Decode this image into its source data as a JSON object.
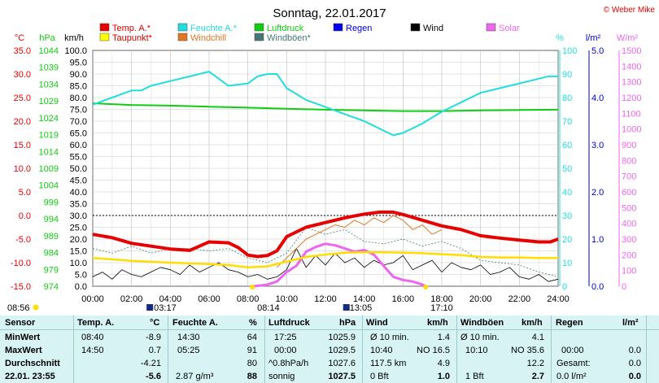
{
  "title": "Sonntag, 22.01.2017",
  "credit": "© Weber Mike",
  "legend": [
    {
      "label": "Temp. A.*",
      "color": "#e60000"
    },
    {
      "label": "Feuchte A.*",
      "color": "#22dddd"
    },
    {
      "label": "Luftdruck",
      "color": "#11cc11"
    },
    {
      "label": "Regen",
      "color": "#0000ee"
    },
    {
      "label": "Wind",
      "color": "#000000"
    },
    {
      "label": "Solar",
      "color": "#ee66ee"
    },
    {
      "label": "Taupunkt*",
      "color": "#ffff00"
    },
    {
      "label": "Windchill",
      "color": "#dd7722"
    },
    {
      "label": "Windböen*",
      "color": "#447777"
    }
  ],
  "axis_units": {
    "temp": "°C",
    "press": "hPa",
    "wind": "km/h",
    "hum": "%",
    "rain": "l/m²",
    "solar": "W/m²"
  },
  "sun": {
    "sunrise": "08:14",
    "sunset": "17:10",
    "moonset": "03:17",
    "moonrise": "13:05",
    "daylength": "08:56"
  },
  "chart_data": {
    "type": "line",
    "x_unit": "hours",
    "x_ticks": [
      "00:00",
      "02:00",
      "04:00",
      "06:00",
      "08:00",
      "10:00",
      "12:00",
      "14:00",
      "16:00",
      "18:00",
      "20:00",
      "22:00",
      "24:00"
    ],
    "axes": {
      "temp": {
        "range": [
          -15,
          35
        ],
        "ticks": [
          "35.0",
          "30.0",
          "25.0",
          "20.0",
          "15.0",
          "10.0",
          "5.0",
          "0.0",
          "-5.0",
          "-10.0",
          "-15.0"
        ]
      },
      "press": {
        "range": [
          974,
          1044
        ],
        "ticks": [
          "1044",
          "1039",
          "1034",
          "1029",
          "1024",
          "1019",
          "1014",
          "1009",
          "1004",
          "999",
          "994",
          "989",
          "984",
          "979",
          "974"
        ]
      },
      "wind": {
        "range": [
          0,
          100
        ],
        "ticks": [
          "100.0",
          "95.0",
          "90.0",
          "85.0",
          "80.0",
          "75.0",
          "70.0",
          "65.0",
          "60.0",
          "55.0",
          "50.0",
          "45.0",
          "40.0",
          "35.0",
          "30.0",
          "25.0",
          "20.0",
          "15.0",
          "10.0",
          "5.0",
          "0.0"
        ]
      },
      "hum": {
        "range": [
          0,
          100
        ],
        "ticks": [
          "100",
          "90",
          "80",
          "70",
          "60",
          "50",
          "40",
          "30",
          "20",
          "10",
          "0"
        ]
      },
      "rain": {
        "range": [
          0,
          5
        ],
        "ticks": [
          "5.0",
          "4.0",
          "3.0",
          "2.0",
          "1.0",
          "0.0"
        ]
      },
      "solar": {
        "range": [
          0,
          1500
        ],
        "ticks": [
          "1500",
          "1400",
          "1300",
          "1200",
          "1100",
          "1000",
          "900",
          "800",
          "700",
          "600",
          "500",
          "400",
          "300",
          "200",
          "100",
          "0"
        ]
      }
    },
    "series": [
      {
        "name": "Temp. A.*",
        "axis": "temp",
        "color": "#e60000",
        "x": [
          0,
          1,
          2,
          3,
          4,
          5,
          5.5,
          6,
          7,
          7.5,
          8,
          8.5,
          9,
          9.5,
          10,
          11,
          12,
          13,
          14,
          14.8,
          15.5,
          16,
          17,
          18,
          19,
          20,
          21,
          22,
          23,
          23.6,
          24
        ],
        "y": [
          -4.0,
          -4.7,
          -5.9,
          -6.5,
          -7.1,
          -7.4,
          -6.5,
          -5.6,
          -5.8,
          -6.8,
          -8.4,
          -8.7,
          -8.5,
          -7.5,
          -4.5,
          -2.5,
          -1.5,
          -0.5,
          0.3,
          0.7,
          0.7,
          0.2,
          -1.0,
          -2.2,
          -3.0,
          -4.3,
          -4.8,
          -5.2,
          -5.6,
          -5.6,
          -5.0
        ]
      },
      {
        "name": "Taupunkt*",
        "axis": "temp",
        "color": "#ffdd00",
        "x": [
          0,
          2,
          4,
          6,
          7,
          8,
          9,
          10,
          11,
          12,
          13,
          14,
          15,
          16,
          17,
          18,
          19,
          20,
          21,
          22,
          23,
          24
        ],
        "y": [
          -9.0,
          -9.6,
          -10.0,
          -10.3,
          -10.5,
          -11.0,
          -10.8,
          -9.8,
          -8.8,
          -8.3,
          -7.9,
          -7.8,
          -7.8,
          -7.9,
          -8.0,
          -8.2,
          -8.4,
          -8.8,
          -8.9,
          -8.9,
          -9.0,
          -9.0
        ]
      },
      {
        "name": "Feuchte A.*",
        "axis": "hum",
        "color": "#22dddd",
        "x": [
          0,
          1,
          2,
          2.5,
          3,
          4,
          5,
          6,
          6.5,
          7,
          8,
          8.5,
          9,
          9.5,
          10,
          11,
          12,
          13,
          14,
          14.5,
          15,
          15.5,
          16,
          17,
          18,
          19,
          20,
          21,
          22,
          23,
          23.5,
          24
        ],
        "y": [
          77,
          80,
          83,
          83,
          85,
          87,
          89,
          91,
          88,
          85,
          86,
          89,
          90,
          90,
          84,
          79,
          76,
          73,
          70,
          68,
          66,
          64,
          65,
          69,
          74,
          78,
          82,
          84,
          86,
          88,
          89,
          89
        ]
      },
      {
        "name": "Luftdruck",
        "axis": "press",
        "color": "#11cc11",
        "x": [
          0,
          2,
          4,
          6,
          8,
          10,
          12,
          14,
          16,
          18,
          20,
          22,
          24
        ],
        "y": [
          1028.3,
          1027.8,
          1027.6,
          1027.3,
          1027.0,
          1026.7,
          1026.4,
          1026.2,
          1026.0,
          1026.0,
          1026.2,
          1026.3,
          1026.4
        ]
      },
      {
        "name": "Wind",
        "axis": "wind",
        "color": "#000000",
        "x": [
          0,
          0.5,
          1,
          1.5,
          2,
          2.5,
          3,
          3.5,
          4,
          4.5,
          5,
          5.5,
          6,
          6.5,
          7,
          7.5,
          8,
          8.5,
          9,
          9.5,
          10,
          10.5,
          11,
          11.5,
          12,
          12.5,
          13,
          13.5,
          14,
          14.5,
          15,
          15.5,
          16,
          16.5,
          17,
          17.5,
          18,
          18.5,
          19,
          19.5,
          20,
          20.5,
          21,
          21.5,
          22,
          22.5,
          23,
          23.5,
          24
        ],
        "y": [
          4,
          6,
          3,
          7,
          5,
          4,
          6,
          8,
          7,
          5,
          9,
          6,
          8,
          10,
          7,
          6,
          4,
          5,
          3,
          4,
          7,
          16,
          8,
          13,
          9,
          14,
          10,
          12,
          8,
          11,
          9,
          10,
          13,
          7,
          9,
          11,
          6,
          10,
          8,
          7,
          9,
          5,
          6,
          8,
          4,
          3,
          5,
          2,
          3
        ]
      },
      {
        "name": "Windböen*",
        "axis": "wind",
        "color": "#447777",
        "x": [
          0,
          1,
          2,
          3,
          4,
          5,
          6,
          7,
          8,
          9,
          10,
          11,
          12,
          13,
          14,
          15,
          16,
          17,
          18,
          19,
          20,
          21,
          22,
          23,
          24
        ],
        "y": [
          16,
          14,
          17,
          14,
          16,
          16,
          15,
          16,
          12,
          10,
          14,
          25,
          22,
          24,
          19,
          18,
          20,
          17,
          19,
          16,
          11,
          10,
          9,
          6,
          4
        ]
      },
      {
        "name": "Windchill",
        "axis": "temp",
        "color": "#dd7722",
        "x": [
          9.5,
          10,
          10.5,
          11,
          11.5,
          12,
          12.5,
          13,
          13.5,
          14,
          14.5,
          15,
          15.5,
          16,
          16.5,
          17,
          17.5,
          18
        ],
        "y": [
          -11,
          -9,
          -7,
          -5,
          -4,
          -3,
          -2,
          -2.5,
          -1,
          -2,
          -0.5,
          -1.5,
          0,
          -1,
          -3,
          -2,
          -4,
          -3
        ]
      },
      {
        "name": "Solar",
        "axis": "solar",
        "color": "#ee66ee",
        "x": [
          8.3,
          9,
          9.5,
          10,
          10.5,
          11,
          11.5,
          12,
          12.5,
          13,
          13.5,
          14,
          14.5,
          15,
          15.5,
          16,
          16.5,
          17,
          17.2
        ],
        "y": [
          0,
          10,
          30,
          90,
          130,
          220,
          250,
          270,
          260,
          240,
          220,
          230,
          200,
          130,
          60,
          40,
          30,
          10,
          0
        ]
      }
    ]
  },
  "table": {
    "headers": {
      "sensor": "Sensor",
      "temp": "Temp. A.",
      "temp_unit": "°C",
      "hum": "Feuchte A.",
      "hum_unit": "%",
      "press": "Luftdruck",
      "press_unit": "hPa",
      "wind": "Wind",
      "wind_unit": "km/h",
      "gust": "Windböen",
      "gust_unit": "km/h",
      "rain": "Regen",
      "rain_unit": "l/m²"
    },
    "rows": [
      {
        "label": "MinWert",
        "temp_time": "08:40",
        "temp": "-8.9",
        "hum_time": "14:30",
        "hum": "64",
        "press_time": "17:25",
        "press": "1025.9",
        "wind_time": "Ø 10 min.",
        "wind": "1.4",
        "gust_time": "Ø 10 min.",
        "gust": "4.1",
        "rain_time": "",
        "rain": ""
      },
      {
        "label": "MaxWert",
        "temp_time": "14:50",
        "temp": "0.7",
        "hum_time": "05:25",
        "hum": "91",
        "press_time": "00:00",
        "press": "1029.5",
        "wind_time": "10:40",
        "wind_dir": "NO 16.5",
        "wind": "",
        "gust_time": "10:10",
        "gust_dir": "NO 35.6",
        "gust": "",
        "rain_time": "00:00",
        "rain": "0.0"
      },
      {
        "label": "Durchschnitt",
        "temp_time": "",
        "temp": "-4.21",
        "hum_time": "",
        "hum": "80",
        "press_time": "^0.8hPa/h",
        "press": "1027.6",
        "wind_time": "117.5 km",
        "wind": "4.9",
        "gust_time": "",
        "gust": "12.2",
        "rain_time": "Gesamt:",
        "rain": "0.0"
      },
      {
        "label": "22.01. 23:55",
        "temp_time": "",
        "temp": "-5.6",
        "hum_time": "2.87 g/m³",
        "hum": "88",
        "press_time": "sonnig",
        "press": "1027.5",
        "wind_time": "0 Bft",
        "wind": "1.0",
        "gust_time": "1 Bft",
        "gust": "2.7",
        "rain_time": "0.0 l/m²",
        "rain": "0.0"
      }
    ]
  }
}
